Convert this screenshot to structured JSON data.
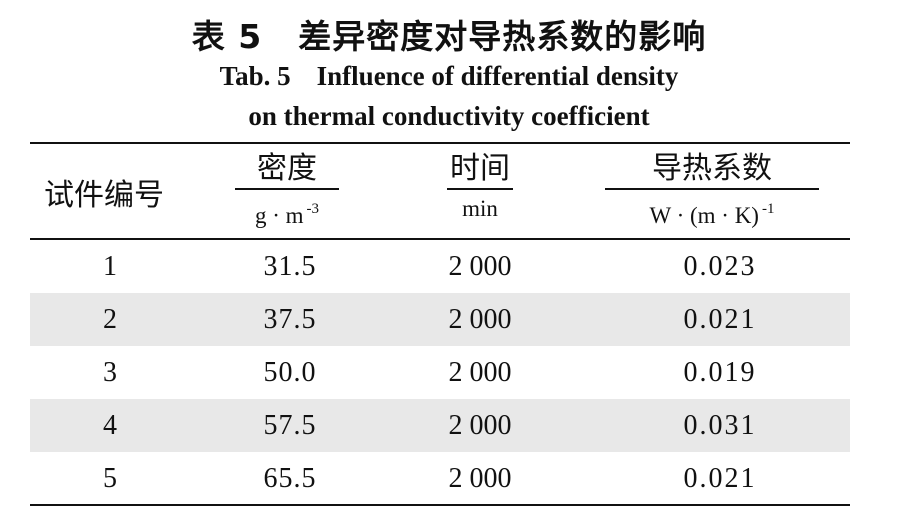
{
  "caption": {
    "zh_number": "表 5",
    "zh_title": "差异密度对导热系数的影响",
    "en_number": "Tab. 5",
    "en_title_line1": "Influence of differential density",
    "en_title_line2": "on thermal conductivity coefficient"
  },
  "table": {
    "columns": [
      {
        "label": "试件编号",
        "unit": ""
      },
      {
        "label": "密度",
        "unit": "g · m",
        "unit_exp": "-3"
      },
      {
        "label": "时间",
        "unit": "min"
      },
      {
        "label": "导热系数",
        "unit": "W · (m · K)",
        "unit_exp": "-1"
      }
    ],
    "rows": [
      {
        "id": "1",
        "density": "31.5",
        "time": "2 000",
        "conductivity": "0.023"
      },
      {
        "id": "2",
        "density": "37.5",
        "time": "2 000",
        "conductivity": "0.021"
      },
      {
        "id": "3",
        "density": "50.0",
        "time": "2 000",
        "conductivity": "0.019"
      },
      {
        "id": "4",
        "density": "57.5",
        "time": "2 000",
        "conductivity": "0.031"
      },
      {
        "id": "5",
        "density": "65.5",
        "time": "2 000",
        "conductivity": "0.021"
      }
    ]
  }
}
